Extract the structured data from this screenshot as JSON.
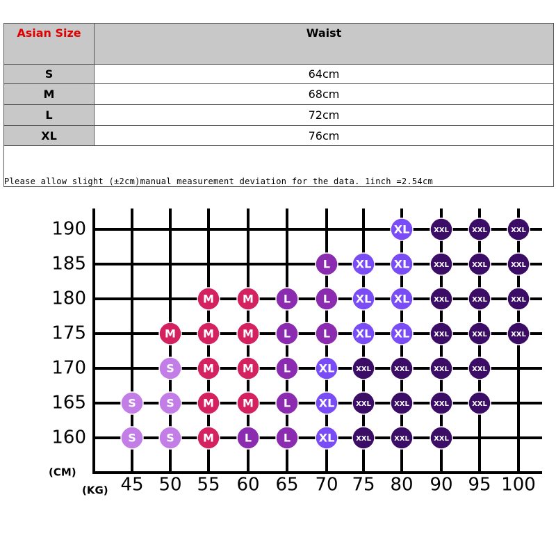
{
  "table": {
    "header": [
      "Asian Size",
      "Waist"
    ],
    "rows": [
      [
        "S",
        "64cm"
      ],
      [
        "M",
        "68cm"
      ],
      [
        "L",
        "72cm"
      ],
      [
        "XL",
        "76cm"
      ]
    ],
    "note": "Please allow slight (±2cm)manual measurement deviation for the data. 1inch =2.54cm"
  },
  "grid": {
    "y_unit": "(CM)",
    "x_unit": "(KG)",
    "weights": [
      45,
      50,
      55,
      60,
      65,
      70,
      75,
      80,
      90,
      95,
      100
    ],
    "size_colors": {
      "S": "#c27ee6",
      "M": "#d4215f",
      "L": "#8a2bb0",
      "XL": "#7a4cf5",
      "XXL": "#3b0d66"
    },
    "rows": [
      {
        "height": 190,
        "cells": [
          null,
          null,
          null,
          null,
          null,
          null,
          null,
          "XL",
          "XXL",
          "XXL",
          "XXL"
        ]
      },
      {
        "height": 185,
        "cells": [
          null,
          null,
          null,
          null,
          null,
          "L",
          "XL",
          "XL",
          "XXL",
          "XXL",
          "XXL"
        ]
      },
      {
        "height": 180,
        "cells": [
          null,
          null,
          "M",
          "M",
          "L",
          "L",
          "XL",
          "XL",
          "XXL",
          "XXL",
          "XXL"
        ]
      },
      {
        "height": 175,
        "cells": [
          null,
          "M",
          "M",
          "M",
          "L",
          "L",
          "XL",
          "XL",
          "XXL",
          "XXL",
          "XXL"
        ]
      },
      {
        "height": 170,
        "cells": [
          null,
          "S",
          "M",
          "M",
          "L",
          "XL",
          "XXL",
          "XXL",
          "XXL",
          "XXL",
          null
        ]
      },
      {
        "height": 165,
        "cells": [
          "S",
          "S",
          "M",
          "M",
          "L",
          "XL",
          "XXL",
          "XXL",
          "XXL",
          "XXL",
          null
        ]
      },
      {
        "height": 160,
        "cells": [
          "S",
          "S",
          "M",
          "L",
          "L",
          "XL",
          "XXL",
          "XXL",
          "XXL",
          null,
          null
        ]
      }
    ]
  }
}
